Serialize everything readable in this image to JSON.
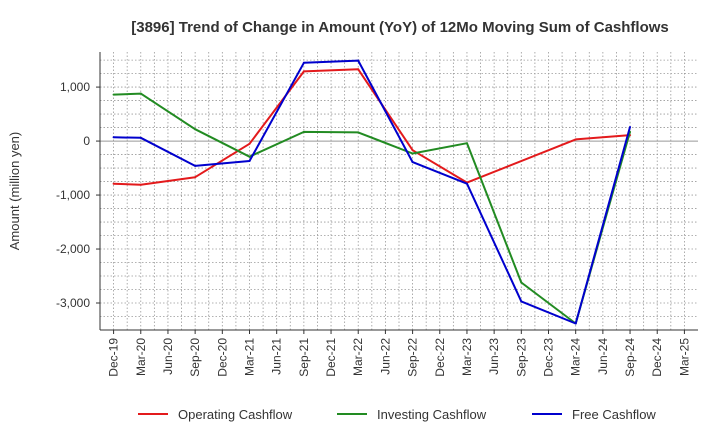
{
  "chart_data": {
    "type": "line",
    "title": "[3896]  Trend of Change in Amount (YoY) of 12Mo Moving Sum of Cashflows",
    "xlabel": "",
    "ylabel": "Amount (million yen)",
    "ylim": [
      -3500,
      1650
    ],
    "yticks": [
      1000,
      0,
      -1000,
      -2000,
      -3000
    ],
    "ytick_labels": [
      "1,000",
      "0",
      "-1,000",
      "-2,000",
      "-3,000"
    ],
    "grid": true,
    "legend_position": "bottom",
    "categories": [
      "Dec-19",
      "Mar-20",
      "Jun-20",
      "Sep-20",
      "Dec-20",
      "Mar-21",
      "Jun-21",
      "Sep-21",
      "Dec-21",
      "Mar-22",
      "Jun-22",
      "Sep-22",
      "Dec-22",
      "Mar-23",
      "Jun-23",
      "Sep-23",
      "Dec-23",
      "Mar-24",
      "Jun-24",
      "Sep-24",
      "Dec-24",
      "Mar-25"
    ],
    "series": [
      {
        "name": "Operating Cashflow",
        "color": "#e31a1c",
        "points": [
          {
            "x": "Dec-19",
            "y": -790
          },
          {
            "x": "Mar-20",
            "y": -810
          },
          {
            "x": "Sep-20",
            "y": -670
          },
          {
            "x": "Mar-21",
            "y": -50
          },
          {
            "x": "Sep-21",
            "y": 1290
          },
          {
            "x": "Mar-22",
            "y": 1330
          },
          {
            "x": "Sep-22",
            "y": -170
          },
          {
            "x": "Mar-23",
            "y": -770
          },
          {
            "x": "Mar-24",
            "y": 30
          },
          {
            "x": "Sep-24",
            "y": 110
          }
        ]
      },
      {
        "name": "Investing Cashflow",
        "color": "#228b22",
        "points": [
          {
            "x": "Dec-19",
            "y": 860
          },
          {
            "x": "Mar-20",
            "y": 880
          },
          {
            "x": "Sep-20",
            "y": 220
          },
          {
            "x": "Mar-21",
            "y": -290
          },
          {
            "x": "Sep-21",
            "y": 170
          },
          {
            "x": "Mar-22",
            "y": 160
          },
          {
            "x": "Sep-22",
            "y": -230
          },
          {
            "x": "Mar-23",
            "y": -40
          },
          {
            "x": "Sep-23",
            "y": -2620
          },
          {
            "x": "Mar-24",
            "y": -3380
          },
          {
            "x": "Sep-24",
            "y": 170
          }
        ]
      },
      {
        "name": "Free Cashflow",
        "color": "#0000cd",
        "points": [
          {
            "x": "Dec-19",
            "y": 70
          },
          {
            "x": "Mar-20",
            "y": 60
          },
          {
            "x": "Sep-20",
            "y": -460
          },
          {
            "x": "Mar-21",
            "y": -370
          },
          {
            "x": "Sep-21",
            "y": 1450
          },
          {
            "x": "Mar-22",
            "y": 1490
          },
          {
            "x": "Sep-22",
            "y": -390
          },
          {
            "x": "Mar-23",
            "y": -790
          },
          {
            "x": "Sep-23",
            "y": -2970
          },
          {
            "x": "Mar-24",
            "y": -3380
          },
          {
            "x": "Sep-24",
            "y": 260
          }
        ]
      }
    ]
  }
}
